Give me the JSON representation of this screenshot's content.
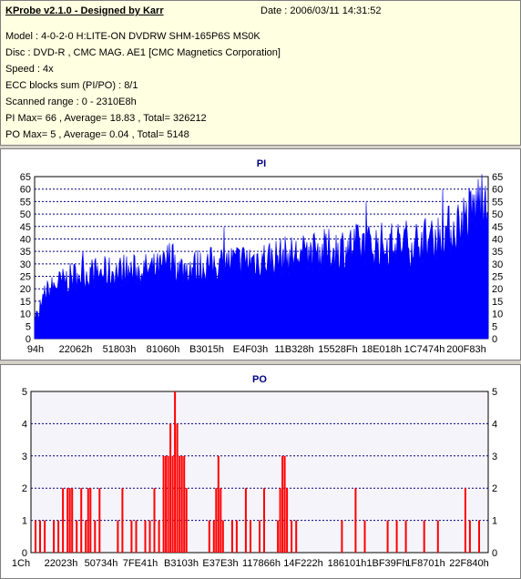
{
  "header": {
    "title": "KProbe v2.1.0 - Designed by Karr",
    "date": "Date : 2006/03/11 14:31:52",
    "lines": [
      "Model : 4-0-2-0 H:LITE-ON DVDRW SHM-165P6S MS0K",
      "Disc : DVD-R , CMC MAG. AE1 [CMC Magnetics Corporation]",
      "Speed : 4x",
      "ECC blocks sum (PI/PO) : 8/1",
      "Scanned range : 0 - 2310E8h",
      "PI Max= 66 , Average= 18.83 , Total= 326212",
      "PO Max= 5 , Average= 0.04 , Total= 5148"
    ]
  },
  "colors": {
    "bar": "#ff0000",
    "pi_bar": "#0000ff",
    "grid": "#000080",
    "po_bg": "#f6f4fb"
  },
  "chart_data": [
    {
      "type": "bar",
      "title": "PI",
      "ylim": [
        0,
        65
      ],
      "yticks": [
        0,
        5,
        10,
        15,
        20,
        25,
        30,
        35,
        40,
        45,
        50,
        55,
        60,
        65
      ],
      "xticklabels": [
        "94h",
        "22062h",
        "51803h",
        "81060h",
        "B3015h",
        "E4F03h",
        "11B328h",
        "15528Fh",
        "18E018h",
        "1C7474h",
        "200F83h"
      ],
      "anchors": [
        [
          0,
          10
        ],
        [
          0.02,
          18
        ],
        [
          0.05,
          22
        ],
        [
          0.1,
          26
        ],
        [
          0.2,
          27
        ],
        [
          0.28,
          28
        ],
        [
          0.3,
          33
        ],
        [
          0.32,
          28
        ],
        [
          0.4,
          30
        ],
        [
          0.5,
          32
        ],
        [
          0.6,
          34
        ],
        [
          0.7,
          37
        ],
        [
          0.8,
          38
        ],
        [
          0.88,
          40
        ],
        [
          0.92,
          44
        ],
        [
          0.96,
          50
        ],
        [
          1,
          60
        ]
      ],
      "max": 66
    },
    {
      "type": "bar",
      "title": "PO",
      "ylim": [
        0,
        5
      ],
      "yticks": [
        0,
        1,
        2,
        3,
        4,
        5
      ],
      "xticklabels": [
        "1Ch",
        "22023h",
        "50734h",
        "7FE41h",
        "B3103h",
        "E37E3h",
        "117866h",
        "14F222h",
        "186101h",
        "1BF39Fh",
        "1F8701h",
        "22F840h"
      ],
      "spikes": [
        [
          0.01,
          1
        ],
        [
          0.02,
          1
        ],
        [
          0.03,
          1
        ],
        [
          0.05,
          1
        ],
        [
          0.06,
          1
        ],
        [
          0.07,
          2
        ],
        [
          0.08,
          2
        ],
        [
          0.085,
          2
        ],
        [
          0.09,
          2
        ],
        [
          0.1,
          1
        ],
        [
          0.11,
          2
        ],
        [
          0.12,
          1
        ],
        [
          0.125,
          2
        ],
        [
          0.13,
          2
        ],
        [
          0.14,
          1
        ],
        [
          0.15,
          2
        ],
        [
          0.19,
          1
        ],
        [
          0.2,
          2
        ],
        [
          0.22,
          1
        ],
        [
          0.23,
          1
        ],
        [
          0.25,
          1
        ],
        [
          0.26,
          1
        ],
        [
          0.27,
          2
        ],
        [
          0.28,
          1
        ],
        [
          0.29,
          3
        ],
        [
          0.295,
          3
        ],
        [
          0.3,
          3
        ],
        [
          0.305,
          4
        ],
        [
          0.31,
          3
        ],
        [
          0.315,
          5
        ],
        [
          0.32,
          4
        ],
        [
          0.325,
          3
        ],
        [
          0.33,
          3
        ],
        [
          0.335,
          3
        ],
        [
          0.34,
          2
        ],
        [
          0.39,
          1
        ],
        [
          0.4,
          1
        ],
        [
          0.405,
          2
        ],
        [
          0.41,
          3
        ],
        [
          0.415,
          2
        ],
        [
          0.42,
          1
        ],
        [
          0.44,
          1
        ],
        [
          0.45,
          1
        ],
        [
          0.47,
          2
        ],
        [
          0.48,
          1
        ],
        [
          0.5,
          1
        ],
        [
          0.51,
          2
        ],
        [
          0.54,
          1
        ],
        [
          0.545,
          2
        ],
        [
          0.55,
          3
        ],
        [
          0.555,
          3
        ],
        [
          0.56,
          2
        ],
        [
          0.57,
          1
        ],
        [
          0.58,
          1
        ],
        [
          0.68,
          1
        ],
        [
          0.71,
          2
        ],
        [
          0.73,
          1
        ],
        [
          0.78,
          1
        ],
        [
          0.8,
          1
        ],
        [
          0.82,
          1
        ],
        [
          0.86,
          1
        ],
        [
          0.89,
          1
        ],
        [
          0.95,
          2
        ],
        [
          0.96,
          1
        ],
        [
          0.98,
          1
        ]
      ]
    }
  ]
}
